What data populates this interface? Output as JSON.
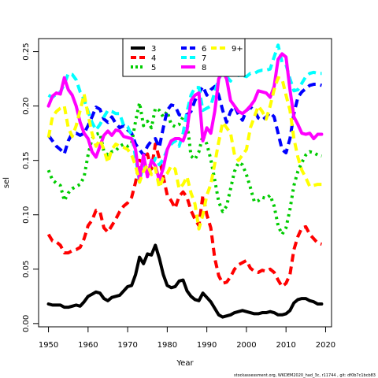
{
  "chart_data": {
    "type": "line",
    "title": "",
    "xlabel": "Year",
    "ylabel": "sel",
    "xlim": [
      1947.5,
      2021.5
    ],
    "ylim": [
      -0.003,
      0.262
    ],
    "xticks": [
      1950,
      1960,
      1970,
      1980,
      1990,
      2000,
      2010,
      2020
    ],
    "yticks": [
      0.0,
      0.05,
      0.1,
      0.15,
      0.2,
      0.25
    ],
    "ytick_labels": [
      "0.00",
      "0.05",
      "0.10",
      "0.15",
      "0.20",
      "0.25"
    ],
    "grid": false,
    "legend_position": "top",
    "footer": "stockassessment.org, WKDEM2020_had_3c, r11744 , git: df0b7c1bcb83",
    "x": [
      1950,
      1951,
      1952,
      1953,
      1954,
      1955,
      1956,
      1957,
      1958,
      1959,
      1960,
      1961,
      1962,
      1963,
      1964,
      1965,
      1966,
      1967,
      1968,
      1969,
      1970,
      1971,
      1972,
      1973,
      1974,
      1975,
      1976,
      1977,
      1978,
      1979,
      1980,
      1981,
      1982,
      1983,
      1984,
      1985,
      1986,
      1987,
      1988,
      1989,
      1990,
      1991,
      1992,
      1993,
      1994,
      1995,
      1996,
      1997,
      1998,
      1999,
      2000,
      2001,
      2002,
      2003,
      2004,
      2005,
      2006,
      2007,
      2008,
      2009,
      2010,
      2011,
      2012,
      2013,
      2014,
      2015,
      2016,
      2017,
      2018,
      2019
    ],
    "series": [
      {
        "name": "3",
        "color": "#000000",
        "dash": "solid",
        "values": [
          0.018,
          0.017,
          0.017,
          0.017,
          0.015,
          0.015,
          0.016,
          0.017,
          0.016,
          0.02,
          0.025,
          0.027,
          0.029,
          0.028,
          0.023,
          0.021,
          0.024,
          0.025,
          0.026,
          0.03,
          0.034,
          0.035,
          0.045,
          0.061,
          0.055,
          0.064,
          0.063,
          0.072,
          0.06,
          0.045,
          0.035,
          0.033,
          0.034,
          0.039,
          0.04,
          0.03,
          0.025,
          0.022,
          0.021,
          0.028,
          0.024,
          0.02,
          0.014,
          0.008,
          0.006,
          0.007,
          0.008,
          0.01,
          0.011,
          0.012,
          0.011,
          0.01,
          0.009,
          0.009,
          0.01,
          0.01,
          0.011,
          0.01,
          0.008,
          0.008,
          0.009,
          0.012,
          0.019,
          0.022,
          0.023,
          0.023,
          0.021,
          0.02,
          0.018,
          0.018
        ]
      },
      {
        "name": "4",
        "color": "#ff0000",
        "dash": "dashed",
        "values": [
          0.082,
          0.076,
          0.075,
          0.072,
          0.065,
          0.065,
          0.067,
          0.068,
          0.07,
          0.078,
          0.09,
          0.095,
          0.104,
          0.103,
          0.088,
          0.084,
          0.09,
          0.096,
          0.103,
          0.108,
          0.111,
          0.116,
          0.13,
          0.15,
          0.148,
          0.156,
          0.142,
          0.165,
          0.152,
          0.135,
          0.118,
          0.113,
          0.106,
          0.117,
          0.121,
          0.116,
          0.104,
          0.096,
          0.09,
          0.118,
          0.1,
          0.088,
          0.06,
          0.044,
          0.037,
          0.038,
          0.043,
          0.05,
          0.054,
          0.056,
          0.058,
          0.051,
          0.048,
          0.047,
          0.049,
          0.048,
          0.05,
          0.047,
          0.04,
          0.034,
          0.037,
          0.045,
          0.068,
          0.08,
          0.088,
          0.089,
          0.082,
          0.078,
          0.074,
          0.073
        ]
      },
      {
        "name": "5",
        "color": "#00cc00",
        "dash": "dotted",
        "values": [
          0.141,
          0.132,
          0.129,
          0.127,
          0.113,
          0.12,
          0.124,
          0.126,
          0.128,
          0.135,
          0.155,
          0.17,
          0.174,
          0.175,
          0.158,
          0.155,
          0.158,
          0.159,
          0.163,
          0.165,
          0.163,
          0.166,
          0.186,
          0.203,
          0.182,
          0.186,
          0.18,
          0.198,
          0.196,
          0.19,
          0.195,
          0.183,
          0.181,
          0.183,
          0.19,
          0.186,
          0.154,
          0.151,
          0.158,
          0.173,
          0.165,
          0.151,
          0.132,
          0.112,
          0.103,
          0.108,
          0.124,
          0.14,
          0.148,
          0.146,
          0.137,
          0.125,
          0.112,
          0.113,
          0.116,
          0.115,
          0.118,
          0.108,
          0.09,
          0.082,
          0.088,
          0.105,
          0.127,
          0.14,
          0.148,
          0.155,
          0.158,
          0.157,
          0.155,
          0.154
        ]
      },
      {
        "name": "6",
        "color": "#0000ff",
        "dash": "dashed",
        "values": [
          0.173,
          0.168,
          0.163,
          0.16,
          0.156,
          0.168,
          0.175,
          0.175,
          0.173,
          0.175,
          0.182,
          0.19,
          0.199,
          0.197,
          0.188,
          0.185,
          0.19,
          0.184,
          0.18,
          0.182,
          0.178,
          0.175,
          0.165,
          0.16,
          0.155,
          0.163,
          0.168,
          0.17,
          0.162,
          0.18,
          0.196,
          0.201,
          0.2,
          0.192,
          0.191,
          0.192,
          0.195,
          0.205,
          0.212,
          0.218,
          0.21,
          0.215,
          0.218,
          0.21,
          0.196,
          0.185,
          0.195,
          0.2,
          0.192,
          0.187,
          0.196,
          0.199,
          0.196,
          0.189,
          0.187,
          0.19,
          0.194,
          0.19,
          0.175,
          0.16,
          0.157,
          0.17,
          0.193,
          0.208,
          0.213,
          0.216,
          0.219,
          0.22,
          0.22,
          0.219
        ]
      },
      {
        "name": "7",
        "color": "#00ffff",
        "dash": "dashed",
        "values": [
          0.21,
          0.208,
          0.211,
          0.213,
          0.22,
          0.23,
          0.229,
          0.224,
          0.213,
          0.206,
          0.195,
          0.185,
          0.178,
          0.183,
          0.19,
          0.196,
          0.195,
          0.193,
          0.193,
          0.182,
          0.181,
          0.173,
          0.153,
          0.13,
          0.148,
          0.137,
          0.144,
          0.152,
          0.146,
          0.151,
          0.16,
          0.165,
          0.168,
          0.163,
          0.175,
          0.195,
          0.21,
          0.217,
          0.217,
          0.196,
          0.198,
          0.2,
          0.213,
          0.225,
          0.231,
          0.227,
          0.223,
          0.23,
          0.228,
          0.228,
          0.227,
          0.23,
          0.23,
          0.232,
          0.233,
          0.233,
          0.234,
          0.245,
          0.256,
          0.24,
          0.238,
          0.225,
          0.214,
          0.215,
          0.221,
          0.227,
          0.23,
          0.231,
          0.23,
          0.23
        ]
      },
      {
        "name": "8",
        "color": "#ff00ff",
        "dash": "solid",
        "values": [
          0.2,
          0.209,
          0.212,
          0.211,
          0.226,
          0.215,
          0.21,
          0.2,
          0.185,
          0.175,
          0.17,
          0.158,
          0.153,
          0.163,
          0.173,
          0.177,
          0.173,
          0.178,
          0.177,
          0.172,
          0.171,
          0.17,
          0.16,
          0.132,
          0.155,
          0.135,
          0.15,
          0.145,
          0.132,
          0.143,
          0.16,
          0.168,
          0.17,
          0.17,
          0.168,
          0.178,
          0.205,
          0.21,
          0.212,
          0.168,
          0.18,
          0.175,
          0.195,
          0.225,
          0.232,
          0.225,
          0.205,
          0.2,
          0.195,
          0.193,
          0.196,
          0.2,
          0.205,
          0.214,
          0.213,
          0.212,
          0.208,
          0.218,
          0.243,
          0.248,
          0.245,
          0.215,
          0.19,
          0.183,
          0.175,
          0.174,
          0.175,
          0.17,
          0.174,
          0.174
        ]
      },
      {
        "name": "9+",
        "color": "#ffff00",
        "dash": "dashed",
        "values": [
          0.171,
          0.19,
          0.195,
          0.198,
          0.2,
          0.18,
          0.172,
          0.182,
          0.196,
          0.211,
          0.192,
          0.175,
          0.163,
          0.169,
          0.16,
          0.148,
          0.16,
          0.165,
          0.163,
          0.162,
          0.16,
          0.155,
          0.145,
          0.13,
          0.14,
          0.146,
          0.137,
          0.143,
          0.125,
          0.134,
          0.138,
          0.145,
          0.142,
          0.124,
          0.128,
          0.135,
          0.12,
          0.11,
          0.087,
          0.1,
          0.118,
          0.128,
          0.147,
          0.167,
          0.185,
          0.18,
          0.175,
          0.155,
          0.15,
          0.155,
          0.16,
          0.18,
          0.19,
          0.2,
          0.195,
          0.188,
          0.2,
          0.215,
          0.226,
          0.225,
          0.21,
          0.196,
          0.17,
          0.153,
          0.141,
          0.134,
          0.126,
          0.127,
          0.128,
          0.128
        ]
      }
    ]
  }
}
